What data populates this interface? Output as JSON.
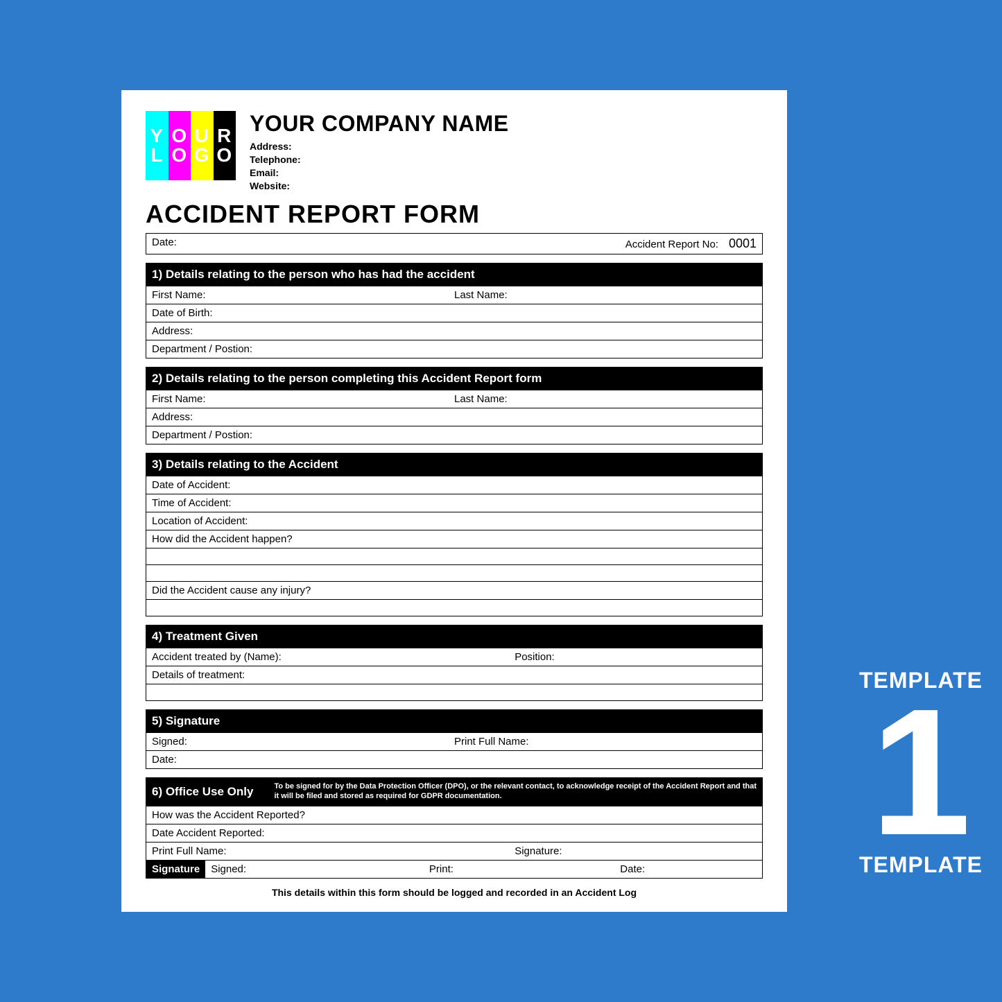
{
  "logo": {
    "line1": "YOUR",
    "line2": "LOGO"
  },
  "company": {
    "name": "YOUR COMPANY NAME",
    "address_label": "Address:",
    "telephone_label": "Telephone:",
    "email_label": "Email:",
    "website_label": "Website:"
  },
  "form_title": "ACCIDENT REPORT FORM",
  "meta": {
    "date_label": "Date:",
    "report_no_label": "Accident Report No:",
    "report_no_value": "0001"
  },
  "s1": {
    "header": "1) Details relating to the person who has had the accident",
    "first_name": "First Name:",
    "last_name": "Last Name:",
    "dob": "Date of Birth:",
    "address": "Address:",
    "dept": "Department / Postion:"
  },
  "s2": {
    "header": "2) Details relating to the person completing this Accident Report form",
    "first_name": "First Name:",
    "last_name": "Last Name:",
    "address": "Address:",
    "dept": "Department / Postion:"
  },
  "s3": {
    "header": "3) Details relating to the Accident",
    "date": "Date of Accident:",
    "time": "Time of Accident:",
    "location": "Location of Accident:",
    "how": "How did the Accident happen?",
    "injury": "Did the Accident cause any injury?"
  },
  "s4": {
    "header": "4) Treatment Given",
    "treated_by": "Accident treated by (Name):",
    "position": "Position:",
    "details": "Details of treatment:"
  },
  "s5": {
    "header": "5) Signature",
    "signed": "Signed:",
    "print_name": "Print Full Name:",
    "date": "Date:"
  },
  "s6": {
    "header": "6) Office Use Only",
    "note": "To be signed for by the Data Protection Officer (DPO), or the relevant contact, to acknowledge receipt of the Accident Report and that it will be filed and stored as required for GDPR documentation.",
    "how_reported": "How was the Accident Reported?",
    "date_reported": "Date Accident Reported:",
    "print_name": "Print Full Name:",
    "signature": "Signature:",
    "sig_label": "Signature",
    "signed": "Signed:",
    "print": "Print:",
    "date": "Date:"
  },
  "footer": "This details within this form should be logged and recorded in an Accident Log",
  "side": {
    "template": "TEMPLATE",
    "number": "1"
  },
  "colors": {
    "background": "#2e7acb",
    "page": "#ffffff",
    "section_header_bg": "#000000",
    "section_header_text": "#ffffff",
    "border": "#000000",
    "side_text": "#ffffff"
  }
}
